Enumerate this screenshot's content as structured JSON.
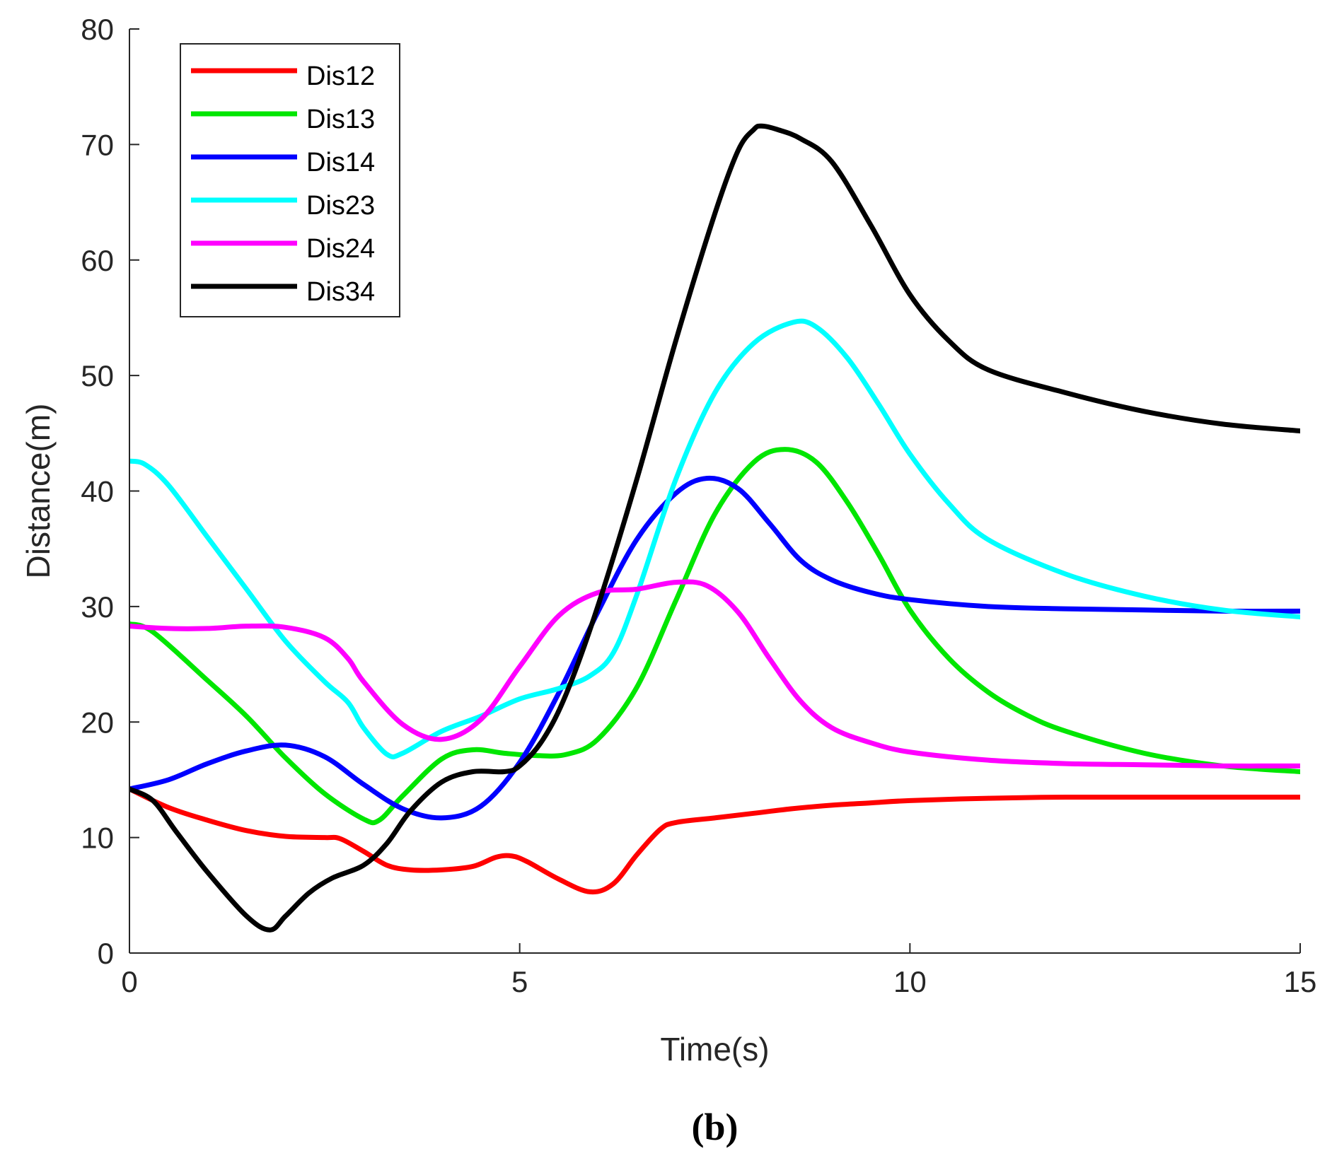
{
  "chart_data": {
    "type": "line",
    "xlabel": "Time(s)",
    "ylabel": "Distance(m)",
    "caption": "(b)",
    "xlim": [
      0,
      15
    ],
    "ylim": [
      0,
      80
    ],
    "xticks": [
      0,
      5,
      10,
      15
    ],
    "yticks": [
      0,
      10,
      20,
      30,
      40,
      50,
      60,
      70,
      80
    ],
    "grid": false,
    "legend_position": "top-left",
    "series": [
      {
        "name": "Dis12",
        "color": "#ff0000",
        "x": [
          0,
          0.5,
          1,
          1.5,
          2,
          2.5,
          2.7,
          3,
          3.3,
          3.6,
          4,
          4.4,
          4.7,
          4.9,
          5.1,
          5.5,
          5.9,
          6.2,
          6.5,
          6.8,
          7.0,
          7.5,
          8,
          8.5,
          9,
          9.5,
          10,
          11,
          12,
          13,
          14,
          15
        ],
        "y": [
          14.2,
          12.6,
          11.5,
          10.6,
          10.1,
          10.0,
          9.9,
          8.8,
          7.6,
          7.2,
          7.2,
          7.5,
          8.3,
          8.4,
          7.9,
          6.4,
          5.3,
          6.0,
          8.5,
          10.7,
          11.3,
          11.7,
          12.1,
          12.5,
          12.8,
          13.0,
          13.2,
          13.4,
          13.5,
          13.5,
          13.5,
          13.5
        ]
      },
      {
        "name": "Dis13",
        "color": "#00e600",
        "x": [
          0,
          0.3,
          1,
          1.5,
          2,
          2.5,
          3,
          3.2,
          3.5,
          4,
          4.4,
          4.8,
          5.2,
          5.6,
          6,
          6.5,
          7,
          7.5,
          8,
          8.4,
          8.8,
          9.2,
          9.6,
          10,
          10.5,
          11,
          11.5,
          12,
          13,
          14,
          15
        ],
        "y": [
          28.5,
          27.8,
          23.6,
          20.5,
          16.9,
          13.8,
          11.6,
          11.5,
          13.6,
          16.8,
          17.6,
          17.3,
          17.1,
          17.2,
          18.5,
          23.0,
          30.5,
          38.0,
          42.5,
          43.6,
          42.5,
          39.0,
          34.5,
          29.7,
          25.5,
          22.6,
          20.6,
          19.2,
          17.3,
          16.2,
          15.7
        ]
      },
      {
        "name": "Dis14",
        "color": "#0000ff",
        "x": [
          0,
          0.5,
          1,
          1.5,
          2,
          2.5,
          3,
          3.5,
          4,
          4.5,
          5,
          5.5,
          6,
          6.5,
          7,
          7.4,
          7.8,
          8.2,
          8.6,
          9,
          9.5,
          10,
          11,
          12,
          13,
          14,
          15
        ],
        "y": [
          14.2,
          15.0,
          16.4,
          17.5,
          18.0,
          17.0,
          14.6,
          12.5,
          11.7,
          12.7,
          16.5,
          22.5,
          29.5,
          35.8,
          39.8,
          41.1,
          40.2,
          37.2,
          34.0,
          32.3,
          31.2,
          30.6,
          30.0,
          29.8,
          29.7,
          29.6,
          29.6
        ]
      },
      {
        "name": "Dis23",
        "color": "#00ffff",
        "x": [
          0,
          0.2,
          0.5,
          1,
          1.5,
          2,
          2.5,
          2.8,
          3,
          3.3,
          3.5,
          4,
          4.5,
          5,
          5.5,
          5.9,
          6.2,
          6.5,
          7,
          7.5,
          8,
          8.5,
          8.8,
          9.2,
          9.6,
          10,
          10.5,
          11,
          12,
          13,
          14,
          15
        ],
        "y": [
          42.6,
          42.3,
          40.5,
          36.0,
          31.5,
          27.0,
          23.5,
          21.7,
          19.5,
          17.2,
          17.3,
          19.2,
          20.5,
          22.0,
          22.9,
          24.0,
          26.0,
          31.0,
          41.0,
          48.5,
          52.8,
          54.6,
          54.2,
          51.5,
          47.5,
          43.2,
          38.9,
          35.8,
          32.8,
          30.9,
          29.7,
          29.1
        ]
      },
      {
        "name": "Dis24",
        "color": "#ff00ff",
        "x": [
          0,
          0.5,
          1,
          1.5,
          2,
          2.5,
          2.8,
          3,
          3.5,
          4,
          4.5,
          5,
          5.5,
          6,
          6.5,
          7,
          7.4,
          7.8,
          8.2,
          8.6,
          9,
          9.5,
          10,
          11,
          12,
          13,
          14,
          15
        ],
        "y": [
          28.3,
          28.1,
          28.1,
          28.3,
          28.2,
          27.3,
          25.5,
          23.5,
          19.8,
          18.5,
          20.2,
          24.8,
          29.2,
          31.2,
          31.5,
          32.1,
          31.8,
          29.5,
          25.5,
          21.8,
          19.5,
          18.2,
          17.4,
          16.7,
          16.4,
          16.3,
          16.2,
          16.2
        ]
      },
      {
        "name": "Dis34",
        "color": "#000000",
        "x": [
          0,
          0.3,
          0.6,
          1,
          1.5,
          1.8,
          2,
          2.3,
          2.6,
          3,
          3.3,
          3.6,
          4,
          4.4,
          4.8,
          5,
          5.3,
          5.6,
          6,
          6.5,
          7,
          7.5,
          7.8,
          8,
          8.1,
          8.3,
          8.6,
          9,
          9.5,
          10,
          10.5,
          11,
          12,
          13,
          14,
          15
        ],
        "y": [
          14.2,
          13.2,
          10.5,
          7.0,
          3.2,
          2.0,
          3.2,
          5.2,
          6.5,
          7.6,
          9.5,
          12.3,
          14.8,
          15.7,
          15.7,
          16.2,
          18.5,
          22.5,
          30.0,
          41.0,
          53.0,
          64.0,
          69.5,
          71.3,
          71.6,
          71.3,
          70.5,
          68.5,
          63.0,
          57.0,
          53.0,
          50.5,
          48.5,
          46.9,
          45.8,
          45.2
        ]
      }
    ]
  }
}
